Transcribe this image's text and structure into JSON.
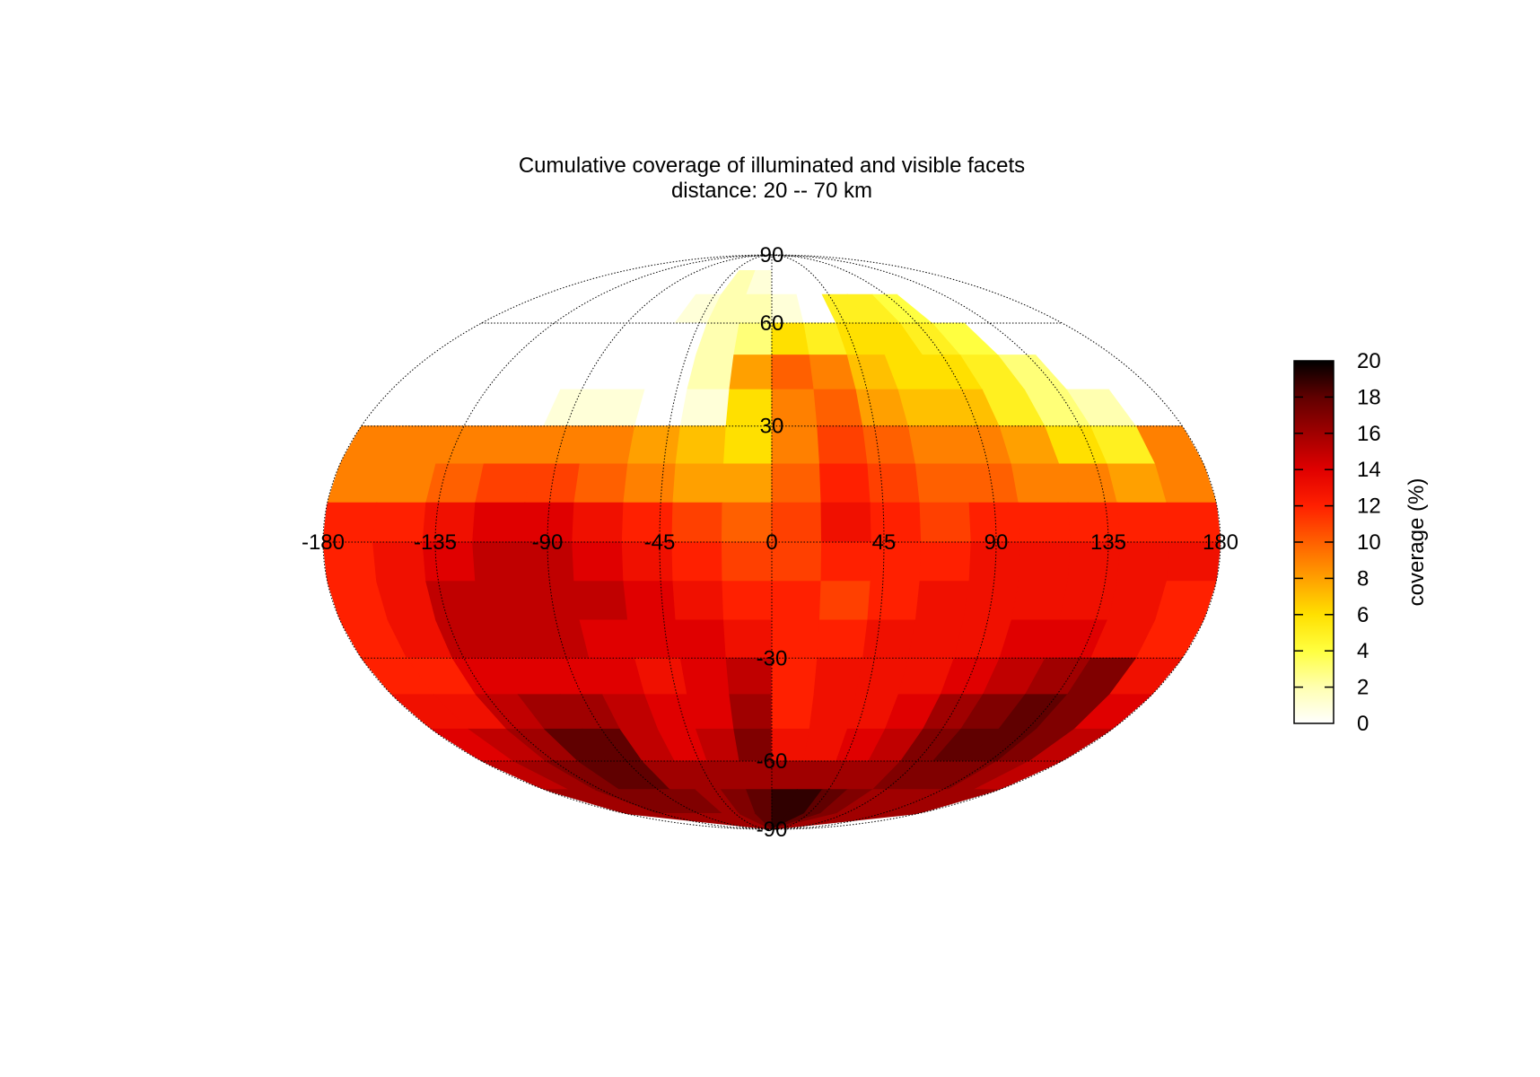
{
  "chart_data": {
    "type": "heatmap",
    "projection": "mollweide",
    "title": "Cumulative coverage of illuminated and visible facets",
    "subtitle": "distance: 20 -- 70 km",
    "x_tick_labels": [
      "-180",
      "-135",
      "-90",
      "-45",
      "0",
      "45",
      "90",
      "135",
      "180"
    ],
    "x_ticks": [
      -180,
      -135,
      -90,
      -45,
      0,
      45,
      90,
      135,
      180
    ],
    "y_tick_labels": [
      "90",
      "60",
      "30",
      "-30",
      "-60",
      "-90"
    ],
    "y_ticks": [
      90,
      60,
      30,
      -30,
      -60,
      -90
    ],
    "grid": true,
    "colorbar": {
      "label": "coverage (%)",
      "range": [
        0,
        20
      ],
      "tick_labels": [
        "0",
        "2",
        "4",
        "6",
        "8",
        "10",
        "12",
        "14",
        "16",
        "18",
        "20"
      ],
      "ticks": [
        0,
        2,
        4,
        6,
        8,
        10,
        12,
        14,
        16,
        18,
        20
      ],
      "colormap": [
        "#ffffff",
        "#ffffb0",
        "#ffff40",
        "#ffe000",
        "#ffa000",
        "#ff6000",
        "#ff2000",
        "#e00000",
        "#a00000",
        "#600000",
        "#000000"
      ]
    },
    "lon_centers": [
      -170,
      -150,
      -130,
      -110,
      -90,
      -70,
      -50,
      -30,
      -10,
      10,
      30,
      50,
      70,
      90,
      110,
      130,
      150,
      170
    ],
    "lat_centers": [
      85,
      75,
      65,
      55,
      45,
      35,
      25,
      15,
      5,
      -5,
      -15,
      -25,
      -35,
      -45,
      -55,
      -65,
      -75,
      -85
    ],
    "values": [
      [
        0,
        0,
        0,
        0,
        0,
        0,
        0,
        0,
        0,
        0,
        0,
        0,
        0,
        0,
        0,
        0,
        0,
        0
      ],
      [
        0,
        0,
        0,
        0,
        0,
        0,
        0,
        2,
        1,
        0,
        0,
        0,
        0,
        0,
        0,
        0,
        0,
        0
      ],
      [
        0,
        0,
        0,
        0,
        0,
        0,
        1,
        2,
        2,
        1,
        0,
        5,
        5,
        4,
        0,
        0,
        0,
        0
      ],
      [
        0,
        0,
        0,
        0,
        0,
        0,
        0,
        2,
        3,
        6,
        5,
        6,
        6,
        5,
        4,
        0,
        0,
        0
      ],
      [
        0,
        0,
        0,
        0,
        0,
        0,
        0,
        2,
        8,
        10,
        9,
        7,
        6,
        6,
        5,
        3,
        0,
        0
      ],
      [
        0,
        0,
        0,
        0,
        1,
        1,
        0,
        1,
        6,
        9,
        10,
        8,
        7,
        7,
        5,
        3,
        2,
        0
      ],
      [
        9,
        9,
        9,
        9,
        9,
        9,
        8,
        7,
        6,
        9,
        11,
        10,
        9,
        9,
        8,
        6,
        5,
        9
      ],
      [
        9,
        9,
        10,
        11,
        11,
        10,
        9,
        8,
        8,
        10,
        12,
        11,
        10,
        10,
        9,
        9,
        8,
        9
      ],
      [
        12,
        12,
        13,
        14,
        14,
        13,
        12,
        11,
        10,
        11,
        13,
        12,
        11,
        12,
        12,
        12,
        12,
        12
      ],
      [
        12,
        13,
        14,
        15,
        15,
        14,
        13,
        12,
        11,
        11,
        12,
        12,
        12,
        13,
        13,
        13,
        13,
        13
      ],
      [
        12,
        13,
        15,
        15,
        15,
        15,
        14,
        13,
        12,
        12,
        11,
        12,
        13,
        13,
        13,
        13,
        13,
        12
      ],
      [
        12,
        13,
        15,
        15,
        15,
        14,
        14,
        14,
        13,
        12,
        12,
        13,
        13,
        13,
        14,
        14,
        13,
        12
      ],
      [
        12,
        12,
        14,
        14,
        14,
        14,
        13,
        14,
        15,
        12,
        13,
        13,
        13,
        14,
        15,
        16,
        17,
        13
      ],
      [
        13,
        13,
        15,
        16,
        16,
        15,
        14,
        14,
        16,
        12,
        13,
        13,
        14,
        16,
        17,
        18,
        17,
        14
      ],
      [
        14,
        15,
        16,
        18,
        18,
        15,
        14,
        15,
        17,
        13,
        13,
        14,
        15,
        17,
        18,
        18,
        17,
        15
      ],
      [
        15,
        16,
        17,
        18,
        18,
        16,
        16,
        16,
        16,
        16,
        16,
        16,
        16,
        17,
        17,
        17,
        16,
        15
      ],
      [
        16,
        16,
        17,
        17,
        17,
        17,
        16,
        17,
        18,
        19,
        19,
        18,
        17,
        16,
        16,
        16,
        16,
        16
      ],
      [
        16,
        16,
        16,
        16,
        16,
        16,
        16,
        17,
        18,
        19,
        19,
        18,
        17,
        16,
        16,
        16,
        16,
        16
      ]
    ]
  }
}
